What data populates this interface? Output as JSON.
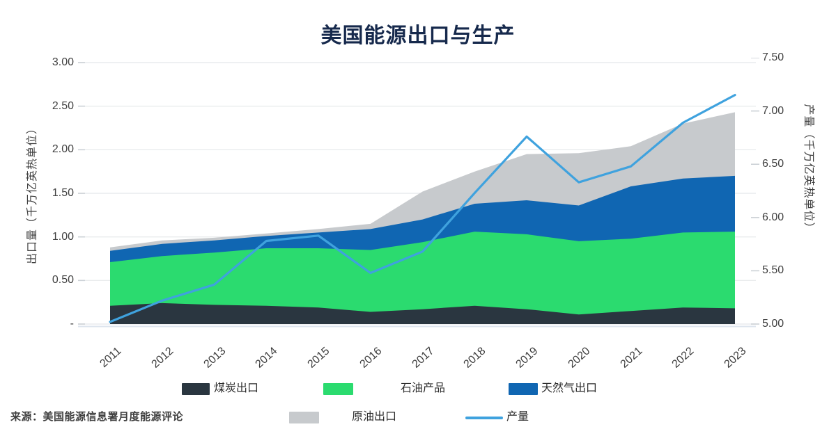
{
  "title": "美国能源出口与生产",
  "source": "来源：美国能源信息署月度能源评论",
  "chart_data": {
    "type": "area",
    "stacked": true,
    "title": "美国能源出口与生产",
    "x": [
      "2011",
      "2012",
      "2013",
      "2014",
      "2015",
      "2016",
      "2017",
      "2018",
      "2019",
      "2020",
      "2021",
      "2022",
      "2023"
    ],
    "series": [
      {
        "name": "煤炭出口",
        "type": "area",
        "axis": "left",
        "color": "#2a3640",
        "values": [
          0.21,
          0.24,
          0.22,
          0.21,
          0.19,
          0.14,
          0.17,
          0.21,
          0.17,
          0.11,
          0.15,
          0.19,
          0.18
        ]
      },
      {
        "name": "石油产品",
        "type": "area",
        "axis": "left",
        "color": "#2bdb6f",
        "values": [
          0.5,
          0.54,
          0.6,
          0.66,
          0.68,
          0.71,
          0.77,
          0.85,
          0.86,
          0.84,
          0.83,
          0.86,
          0.88
        ]
      },
      {
        "name": "天然气出口",
        "type": "area",
        "axis": "left",
        "color": "#1066b2",
        "values": [
          0.13,
          0.14,
          0.14,
          0.14,
          0.18,
          0.24,
          0.26,
          0.32,
          0.39,
          0.41,
          0.6,
          0.62,
          0.64
        ]
      },
      {
        "name": "原油出口",
        "type": "area",
        "axis": "left",
        "color": "#c7cacd",
        "values": [
          0.04,
          0.04,
          0.03,
          0.03,
          0.04,
          0.06,
          0.32,
          0.37,
          0.53,
          0.6,
          0.46,
          0.63,
          0.73
        ]
      },
      {
        "name": "产量",
        "type": "line",
        "axis": "right",
        "color": "#3fa2de",
        "values": [
          5.02,
          5.22,
          5.37,
          5.78,
          5.83,
          5.48,
          5.68,
          6.23,
          6.76,
          6.33,
          6.48,
          6.89,
          7.15
        ]
      }
    ],
    "left_axis": {
      "label": "出口量（千万亿英热单位）",
      "min": 0,
      "max": 3,
      "ticks": [
        "3.00",
        "2.50",
        "2.00",
        "1.50",
        "1.00",
        "0.50",
        "-"
      ]
    },
    "right_axis": {
      "label": "产量（千万亿英热单位）",
      "min": 5,
      "max": 7.5,
      "ticks": [
        "7.50",
        "7.00",
        "6.50",
        "6.00",
        "5.50",
        "5.00"
      ]
    },
    "grid": true,
    "legend_position": "bottom"
  }
}
